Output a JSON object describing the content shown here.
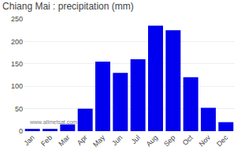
{
  "chart_data": {
    "type": "bar",
    "title": "Chiang Mai : precipitation (mm)",
    "categories": [
      "Jan",
      "Feb",
      "Mar",
      "Apr",
      "May",
      "Jun",
      "Jul",
      "Aug",
      "Sep",
      "Oct",
      "Nov",
      "Dec"
    ],
    "values": [
      5,
      5,
      15,
      50,
      155,
      130,
      160,
      235,
      225,
      120,
      52,
      20
    ],
    "color": "#0000ee",
    "ylim": [
      0,
      250
    ],
    "yticks": [
      0,
      50,
      100,
      150,
      200,
      250
    ],
    "grid": true,
    "annotations": [
      "www.allmetsat.com"
    ]
  }
}
